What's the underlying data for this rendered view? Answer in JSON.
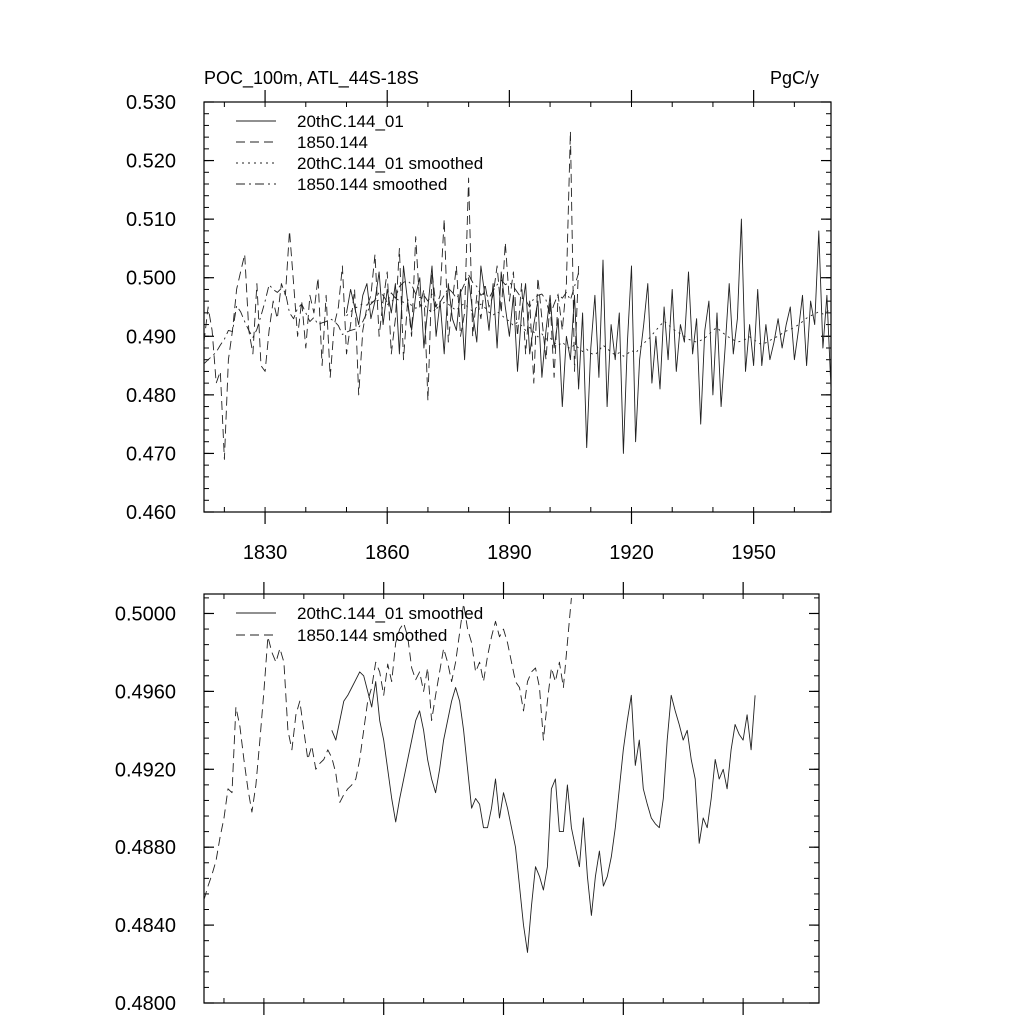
{
  "chart_data": [
    {
      "type": "line",
      "title_left": "POC_100m, ATL_44S-18S",
      "title_right": "PgC/y",
      "xlabel": "",
      "ylabel": "",
      "xlim": [
        1815,
        1969
      ],
      "ylim": [
        0.46,
        0.53
      ],
      "x_ticks": [
        1830,
        1860,
        1890,
        1920,
        1950
      ],
      "y_ticks": [
        0.46,
        0.47,
        0.48,
        0.49,
        0.5,
        0.51,
        0.52,
        0.53
      ],
      "x_tick_labels": [
        "1830",
        "1860",
        "1890",
        "1920",
        "1950"
      ],
      "y_tick_labels": [
        "0.460",
        "0.470",
        "0.480",
        "0.490",
        "0.500",
        "0.510",
        "0.520",
        "0.530"
      ],
      "legend": [
        "20thC.144_01",
        "1850.144",
        "20thC.144_01 smoothed",
        "1850.144 smoothed"
      ],
      "series": [
        {
          "name": "20thC.144_01",
          "style": "solid",
          "x_start": 1850,
          "values": [
            0.494,
            0.498,
            0.495,
            0.492,
            0.497,
            0.499,
            0.493,
            0.496,
            0.501,
            0.492,
            0.498,
            0.494,
            0.499,
            0.487,
            0.502,
            0.496,
            0.491,
            0.497,
            0.5,
            0.488,
            0.495,
            0.502,
            0.49,
            0.496,
            0.487,
            0.499,
            0.493,
            0.491,
            0.498,
            0.486,
            0.5,
            0.494,
            0.489,
            0.502,
            0.497,
            0.491,
            0.499,
            0.488,
            0.501,
            0.495,
            0.49,
            0.497,
            0.484,
            0.494,
            0.499,
            0.487,
            0.492,
            0.496,
            0.483,
            0.491,
            0.497,
            0.488,
            0.493,
            0.478,
            0.49,
            0.486,
            0.497,
            0.481,
            0.494,
            0.471,
            0.488,
            0.497,
            0.483,
            0.503,
            0.478,
            0.492,
            0.486,
            0.494,
            0.47,
            0.489,
            0.502,
            0.472,
            0.486,
            0.492,
            0.499,
            0.482,
            0.49,
            0.481,
            0.495,
            0.486,
            0.498,
            0.484,
            0.492,
            0.489,
            0.501,
            0.487,
            0.493,
            0.475,
            0.491,
            0.496,
            0.48,
            0.494,
            0.478,
            0.488,
            0.499,
            0.487,
            0.493,
            0.51,
            0.484,
            0.492,
            0.485,
            0.498,
            0.485,
            0.492,
            0.486,
            0.489,
            0.493,
            0.488,
            0.492,
            0.495,
            0.486,
            0.491,
            0.497,
            0.485,
            0.496,
            0.492,
            0.508,
            0.488,
            0.497,
            0.481,
            0.505
          ]
        },
        {
          "name": "1850.144",
          "style": "dashed",
          "x_start": 1815,
          "values": [
            0.489,
            0.495,
            0.491,
            0.482,
            0.484,
            0.469,
            0.486,
            0.491,
            0.498,
            0.501,
            0.504,
            0.491,
            0.487,
            0.499,
            0.485,
            0.484,
            0.491,
            0.496,
            0.493,
            0.499,
            0.497,
            0.508,
            0.499,
            0.49,
            0.496,
            0.488,
            0.497,
            0.494,
            0.5,
            0.485,
            0.497,
            0.483,
            0.492,
            0.495,
            0.502,
            0.487,
            0.492,
            0.498,
            0.48,
            0.491,
            0.495,
            0.497,
            0.504,
            0.49,
            0.496,
            0.501,
            0.487,
            0.493,
            0.505,
            0.486,
            0.496,
            0.49,
            0.507,
            0.495,
            0.498,
            0.479,
            0.501,
            0.495,
            0.497,
            0.51,
            0.489,
            0.496,
            0.502,
            0.49,
            0.494,
            0.517,
            0.49,
            0.497,
            0.493,
            0.499,
            0.495,
            0.497,
            0.502,
            0.494,
            0.506,
            0.496,
            0.501,
            0.49,
            0.499,
            0.487,
            0.496,
            0.482,
            0.5,
            0.493,
            0.486,
            0.496,
            0.483,
            0.497,
            0.491,
            0.499,
            0.525,
            0.484,
            0.502
          ]
        },
        {
          "name": "20thC.144_01 smoothed",
          "style": "dotted",
          "x_start": 1850,
          "values": [
            0.4935,
            0.4942,
            0.4948,
            0.4951,
            0.4956,
            0.4953,
            0.4958,
            0.496,
            0.4962,
            0.4957,
            0.4954,
            0.4959,
            0.4965,
            0.4961,
            0.4958,
            0.4963,
            0.4952,
            0.4948,
            0.4951,
            0.4955,
            0.4946,
            0.4941,
            0.4947,
            0.4951,
            0.4958,
            0.4955,
            0.4949,
            0.4944,
            0.4952,
            0.4956,
            0.4948,
            0.4943,
            0.495,
            0.4955,
            0.4949,
            0.4941,
            0.4936,
            0.4942,
            0.4937,
            0.493,
            0.4926,
            0.4918,
            0.4924,
            0.4918,
            0.491,
            0.4915,
            0.4907,
            0.4899,
            0.4904,
            0.4895,
            0.4898,
            0.4889,
            0.4884,
            0.489,
            0.4883,
            0.4879,
            0.4886,
            0.488,
            0.4874,
            0.4878,
            0.4871,
            0.4868,
            0.4875,
            0.4885,
            0.4879,
            0.4873,
            0.4868,
            0.4872,
            0.4866,
            0.487,
            0.4876,
            0.4871,
            0.488,
            0.4888,
            0.4894,
            0.4902,
            0.491,
            0.4918,
            0.4926,
            0.492,
            0.4913,
            0.4909,
            0.4904,
            0.49,
            0.4895,
            0.4892,
            0.489,
            0.4893,
            0.4897,
            0.4903,
            0.491,
            0.4915,
            0.4908,
            0.4903,
            0.4898,
            0.4894,
            0.489,
            0.4892,
            0.4895,
            0.4899,
            0.4895,
            0.4889,
            0.4886,
            0.4889,
            0.4893,
            0.4897,
            0.49,
            0.4905,
            0.4909,
            0.4912,
            0.4915,
            0.492,
            0.4925,
            0.4931,
            0.4935,
            0.4938,
            0.4942,
            0.4938,
            0.4942,
            0.4946,
            0.4948
          ]
        },
        {
          "name": "1850.144 smoothed",
          "style": "dashdot",
          "x_start": 1815,
          "values": [
            0.4853,
            0.486,
            0.4866,
            0.4873,
            0.4885,
            0.4895,
            0.491,
            0.4908,
            0.4952,
            0.4942,
            0.4925,
            0.491,
            0.4898,
            0.4912,
            0.4935,
            0.496,
            0.4988,
            0.498,
            0.4975,
            0.4982,
            0.4975,
            0.494,
            0.493,
            0.4948,
            0.4955,
            0.494,
            0.4925,
            0.4932,
            0.492,
            0.4923,
            0.4925,
            0.493,
            0.4926,
            0.4918,
            0.4903,
            0.4907,
            0.491,
            0.4912,
            0.4915,
            0.4925,
            0.494,
            0.4955,
            0.4962,
            0.4975,
            0.497,
            0.4958,
            0.4974,
            0.4965,
            0.4985,
            0.4992,
            0.4995,
            0.4988,
            0.4972,
            0.4966,
            0.497,
            0.496,
            0.4972,
            0.4945,
            0.4958,
            0.497,
            0.4982,
            0.4975,
            0.4965,
            0.4975,
            0.499,
            0.5005,
            0.4992,
            0.4985,
            0.497,
            0.4975,
            0.4965,
            0.4978,
            0.4988,
            0.4996,
            0.4988,
            0.4992,
            0.4985,
            0.4975,
            0.4965,
            0.4962,
            0.495,
            0.4965,
            0.497,
            0.4972,
            0.4962,
            0.4935,
            0.4955,
            0.4972,
            0.4965,
            0.4975,
            0.4962,
            0.4985,
            0.5008
          ]
        }
      ]
    },
    {
      "type": "line",
      "title_left": "",
      "title_right": "",
      "xlabel": "",
      "ylabel": "",
      "xlim": [
        1815,
        1969
      ],
      "ylim": [
        0.48,
        0.501
      ],
      "x_ticks": [
        1830,
        1860,
        1890,
        1920,
        1950
      ],
      "y_ticks": [
        0.48,
        0.484,
        0.488,
        0.492,
        0.496,
        0.5
      ],
      "y_tick_labels": [
        "0.4800",
        "0.4840",
        "0.4880",
        "0.4920",
        "0.4960",
        "0.5000"
      ],
      "legend": [
        "20thC.144_01 smoothed",
        "1850.144 smoothed"
      ],
      "series": [
        {
          "name": "20thC.144_01 smoothed",
          "style": "solid",
          "x_start": 1847,
          "values": [
            0.494,
            0.4935,
            0.4945,
            0.4955,
            0.4958,
            0.4962,
            0.4966,
            0.497,
            0.4968,
            0.496,
            0.4952,
            0.4965,
            0.4945,
            0.4935,
            0.492,
            0.4905,
            0.4893,
            0.4905,
            0.4915,
            0.4925,
            0.4935,
            0.4945,
            0.495,
            0.494,
            0.4925,
            0.4915,
            0.4908,
            0.492,
            0.4935,
            0.4945,
            0.4955,
            0.4962,
            0.4955,
            0.494,
            0.492,
            0.49,
            0.4905,
            0.4902,
            0.489,
            0.489,
            0.49,
            0.4915,
            0.4895,
            0.4908,
            0.49,
            0.489,
            0.488,
            0.486,
            0.484,
            0.4826,
            0.485,
            0.487,
            0.4865,
            0.4858,
            0.487,
            0.491,
            0.4915,
            0.4888,
            0.4888,
            0.4912,
            0.489,
            0.488,
            0.487,
            0.4895,
            0.4865,
            0.4845,
            0.4865,
            0.4878,
            0.486,
            0.4865,
            0.4875,
            0.489,
            0.491,
            0.493,
            0.4945,
            0.4958,
            0.4922,
            0.4935,
            0.491,
            0.4902,
            0.4895,
            0.4892,
            0.489,
            0.4905,
            0.4935,
            0.4958,
            0.495,
            0.4943,
            0.4935,
            0.494,
            0.4925,
            0.4915,
            0.4882,
            0.4895,
            0.489,
            0.4905,
            0.4925,
            0.4915,
            0.492,
            0.491,
            0.493,
            0.4943,
            0.4938,
            0.4935,
            0.4948,
            0.493,
            0.4958
          ]
        },
        {
          "name": "1850.144 smoothed",
          "style": "dashed",
          "x_start": 1815,
          "values": [
            0.4853,
            0.486,
            0.4866,
            0.4873,
            0.4885,
            0.4895,
            0.491,
            0.4908,
            0.4952,
            0.4942,
            0.4925,
            0.491,
            0.4898,
            0.4912,
            0.4935,
            0.496,
            0.4988,
            0.498,
            0.4975,
            0.4982,
            0.4975,
            0.494,
            0.493,
            0.4948,
            0.4955,
            0.494,
            0.4925,
            0.4932,
            0.492,
            0.4923,
            0.4925,
            0.493,
            0.4926,
            0.4918,
            0.4903,
            0.4907,
            0.491,
            0.4912,
            0.4915,
            0.4925,
            0.494,
            0.4955,
            0.4962,
            0.4975,
            0.497,
            0.4958,
            0.4974,
            0.4965,
            0.4985,
            0.4992,
            0.4995,
            0.4988,
            0.4972,
            0.4966,
            0.497,
            0.496,
            0.4972,
            0.4945,
            0.4958,
            0.497,
            0.4982,
            0.4975,
            0.4965,
            0.4975,
            0.499,
            0.5005,
            0.4992,
            0.4985,
            0.497,
            0.4975,
            0.4965,
            0.4978,
            0.4988,
            0.4996,
            0.4988,
            0.4992,
            0.4985,
            0.4975,
            0.4965,
            0.4962,
            0.495,
            0.4965,
            0.497,
            0.4972,
            0.4962,
            0.4935,
            0.4955,
            0.4972,
            0.4965,
            0.4975,
            0.4962,
            0.4985,
            0.5008
          ]
        }
      ]
    }
  ]
}
